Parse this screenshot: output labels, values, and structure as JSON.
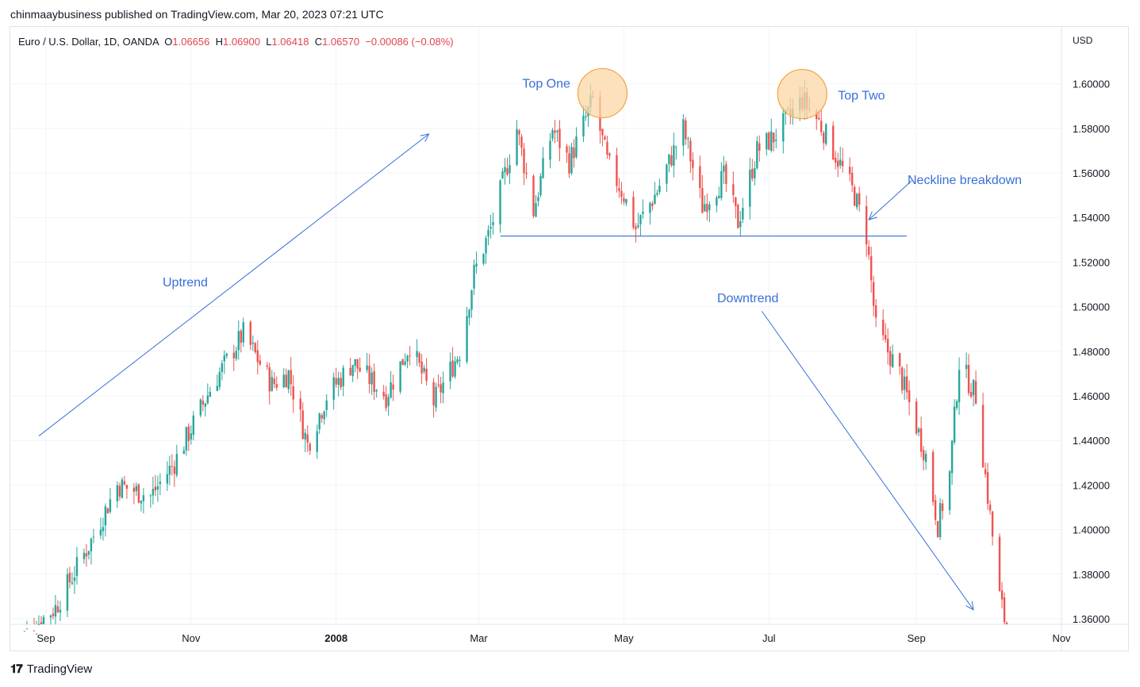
{
  "header": {
    "published_line": "chinmaaybusiness published on TradingView.com, Mar 20, 2023 07:21 UTC"
  },
  "legend": {
    "symbol": "Euro / U.S. Dollar, 1D, OANDA",
    "open_label": "O",
    "open": "1.06656",
    "high_label": "H",
    "high": "1.06900",
    "low_label": "L",
    "low": "1.06418",
    "close_label": "C",
    "close": "1.06570",
    "change": "−0.00086 (−0.08%)"
  },
  "footer": {
    "brand": "TradingView",
    "logo_icon": "tradingview-logo-icon"
  },
  "colors": {
    "up": "#26a69a",
    "down": "#ef5350",
    "annotation": "#3a6fd6",
    "highlight_fill": "#fbd7a6",
    "highlight_stroke": "#f0a441",
    "grid": "#f0f3fa",
    "axis_text": "#131722"
  },
  "chart_data": {
    "type": "candlestick",
    "title": "",
    "xlabel": "",
    "ylabel": "",
    "currency_label": "USD",
    "ylim": [
      1.3575,
      1.6255
    ],
    "xlim": [
      "2007-08-17",
      "2008-11-01"
    ],
    "y_ticks": [
      "1.60000",
      "1.58000",
      "1.56000",
      "1.54000",
      "1.52000",
      "1.50000",
      "1.48000",
      "1.46000",
      "1.44000",
      "1.42000",
      "1.40000",
      "1.38000",
      "1.36000"
    ],
    "x_ticks": [
      {
        "label": "Sep",
        "date": "2007-09-01",
        "bold": false
      },
      {
        "label": "Nov",
        "date": "2007-11-01",
        "bold": false
      },
      {
        "label": "2008",
        "date": "2008-01-01",
        "bold": true
      },
      {
        "label": "Mar",
        "date": "2008-03-01",
        "bold": false
      },
      {
        "label": "May",
        "date": "2008-05-01",
        "bold": false
      },
      {
        "label": "Jul",
        "date": "2008-07-01",
        "bold": false
      },
      {
        "label": "Sep",
        "date": "2008-09-01",
        "bold": false
      },
      {
        "label": "Nov",
        "date": "2008-11-01",
        "bold": false
      }
    ],
    "grid": true,
    "close_path": [
      [
        "2007-08-20",
        1.35
      ],
      [
        "2007-09-05",
        1.365
      ],
      [
        "2007-09-20",
        1.395
      ],
      [
        "2007-10-01",
        1.42
      ],
      [
        "2007-10-15",
        1.415
      ],
      [
        "2007-10-25",
        1.43
      ],
      [
        "2007-11-10",
        1.465
      ],
      [
        "2007-11-23",
        1.488
      ],
      [
        "2007-12-05",
        1.465
      ],
      [
        "2007-12-12",
        1.47
      ],
      [
        "2007-12-20",
        1.438
      ],
      [
        "2007-12-28",
        1.46
      ],
      [
        "2008-01-08",
        1.475
      ],
      [
        "2008-01-22",
        1.46
      ],
      [
        "2008-02-01",
        1.483
      ],
      [
        "2008-02-11",
        1.457
      ],
      [
        "2008-02-22",
        1.48
      ],
      [
        "2008-02-28",
        1.515
      ],
      [
        "2008-03-06",
        1.535
      ],
      [
        "2008-03-17",
        1.58
      ],
      [
        "2008-03-24",
        1.543
      ],
      [
        "2008-04-01",
        1.58
      ],
      [
        "2008-04-08",
        1.565
      ],
      [
        "2008-04-18",
        1.593
      ],
      [
        "2008-04-24",
        1.565
      ],
      [
        "2008-05-01",
        1.55
      ],
      [
        "2008-05-06",
        1.535
      ],
      [
        "2008-05-15",
        1.552
      ],
      [
        "2008-05-26",
        1.58
      ],
      [
        "2008-06-03",
        1.545
      ],
      [
        "2008-06-12",
        1.558
      ],
      [
        "2008-06-18",
        1.538
      ],
      [
        "2008-06-26",
        1.57
      ],
      [
        "2008-07-03",
        1.576
      ],
      [
        "2008-07-15",
        1.593
      ],
      [
        "2008-07-22",
        1.583
      ],
      [
        "2008-07-30",
        1.566
      ],
      [
        "2008-08-06",
        1.55
      ],
      [
        "2008-08-11",
        1.532
      ],
      [
        "2008-08-15",
        1.49
      ],
      [
        "2008-08-25",
        1.47
      ],
      [
        "2008-09-05",
        1.433
      ],
      [
        "2008-09-10",
        1.402
      ],
      [
        "2008-09-15",
        1.425
      ],
      [
        "2008-09-19",
        1.475
      ],
      [
        "2008-09-26",
        1.46
      ],
      [
        "2008-10-06",
        1.37
      ],
      [
        "2008-10-10",
        1.35
      ]
    ]
  },
  "annotations": {
    "top_one": {
      "label": "Top One",
      "date": "2008-04-22",
      "price": 1.5958
    },
    "top_two": {
      "label": "Top Two",
      "date": "2008-07-15",
      "price": 1.5954
    },
    "neckline": {
      "label": "Neckline breakdown",
      "from": [
        "2008-03-10",
        1.5317
      ],
      "to": [
        "2008-08-28",
        1.5317
      ]
    },
    "neckline_arrow": {
      "from": [
        "2008-08-30",
        1.5565
      ],
      "to": [
        "2008-08-12",
        1.539
      ]
    },
    "uptrend": {
      "label": "Uptrend",
      "from": [
        "2007-08-29",
        1.442
      ],
      "to": [
        "2008-02-09",
        1.5775
      ]
    },
    "downtrend": {
      "label": "Downtrend",
      "from": [
        "2008-06-28",
        1.498
      ],
      "to": [
        "2008-09-25",
        1.364
      ]
    }
  }
}
